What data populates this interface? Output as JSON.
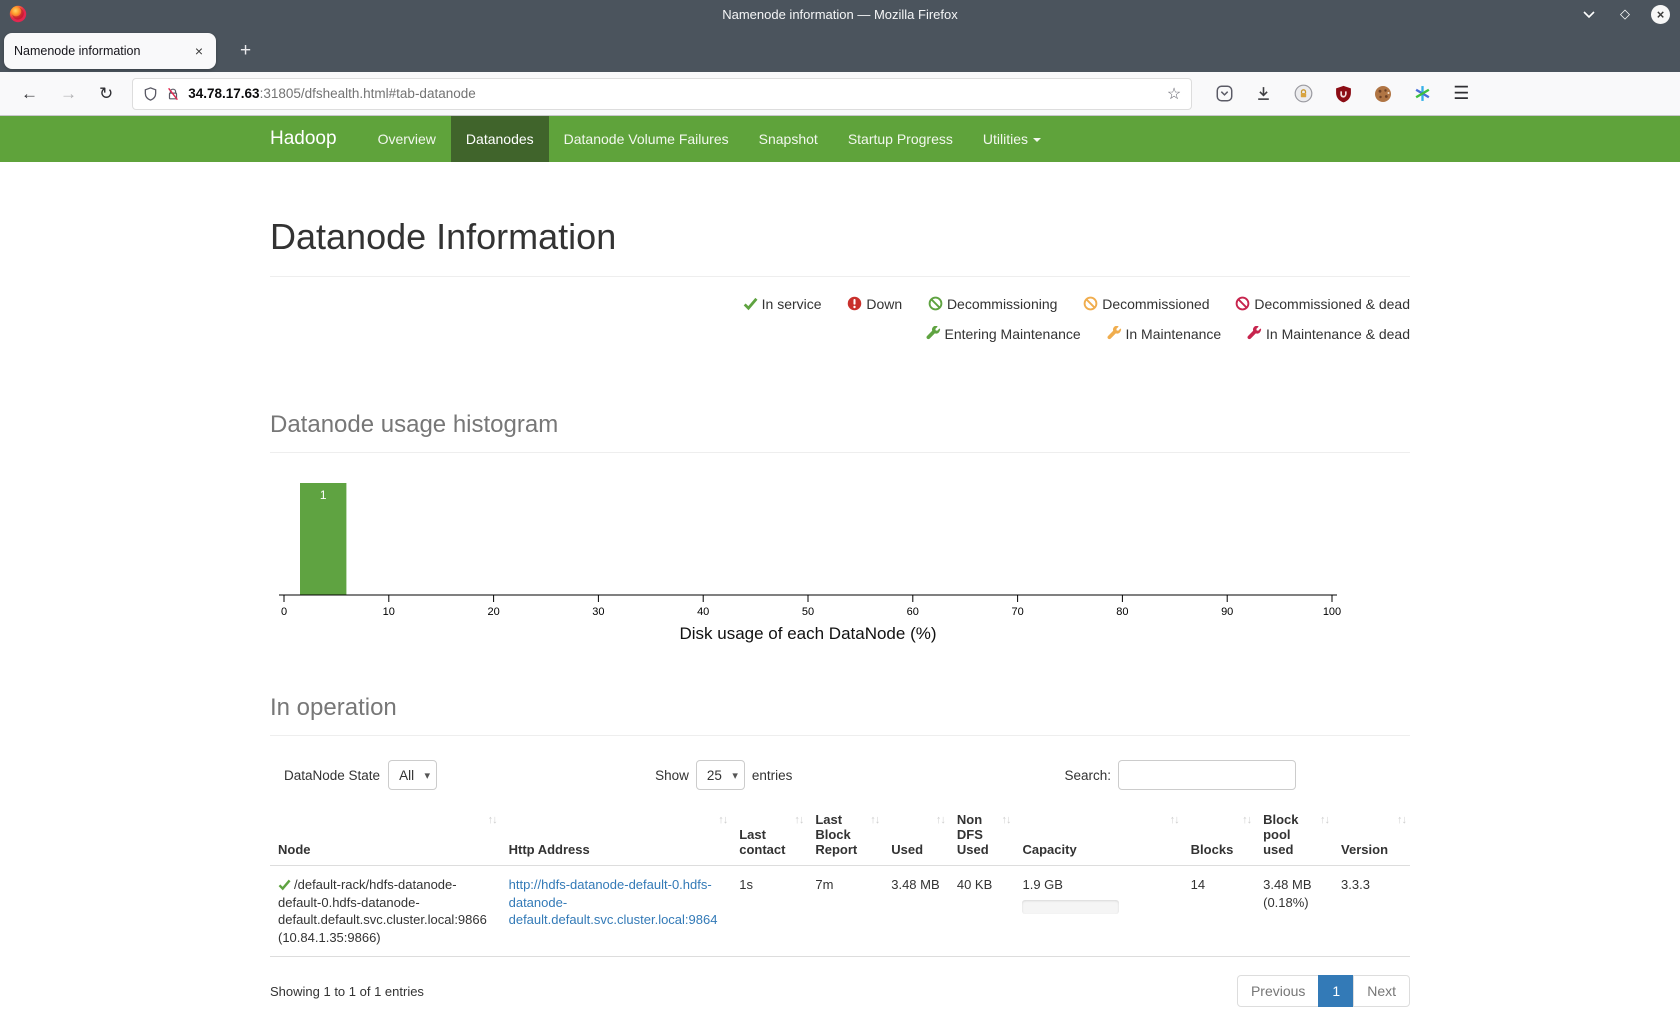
{
  "window": {
    "title": "Namenode information — Mozilla Firefox"
  },
  "browser": {
    "tab_title": "Namenode information",
    "url_host": "34.78.17.63",
    "url_path": ":31805/dfshealth.html#tab-datanode"
  },
  "icons": {
    "close_x": "×",
    "plus": "+",
    "back": "←",
    "forward": "→",
    "reload": "↻",
    "star": "☆",
    "menu": "☰",
    "maximize": "◇",
    "sort": "↑↓"
  },
  "navbar": {
    "brand": "Hadoop",
    "items": [
      {
        "label": "Overview"
      },
      {
        "label": "Datanodes"
      },
      {
        "label": "Datanode Volume Failures"
      },
      {
        "label": "Snapshot"
      },
      {
        "label": "Startup Progress"
      },
      {
        "label": "Utilities"
      }
    ]
  },
  "page_title": "Datanode Information",
  "legend": {
    "row1": [
      {
        "icon": "check",
        "color": "#5fa341",
        "label": "In service"
      },
      {
        "icon": "exclamation-circle",
        "color": "#c9302c",
        "label": "Down"
      },
      {
        "icon": "ban-circle",
        "color": "#5fa341",
        "label": "Decommissioning"
      },
      {
        "icon": "ban-circle",
        "color": "#f0ad4e",
        "label": "Decommissioned"
      },
      {
        "icon": "ban-circle",
        "color": "#c7254e",
        "label": "Decommissioned & dead"
      }
    ],
    "row2": [
      {
        "icon": "wrench",
        "color": "#5fa341",
        "label": "Entering Maintenance"
      },
      {
        "icon": "wrench",
        "color": "#f0ad4e",
        "label": "In Maintenance"
      },
      {
        "icon": "wrench",
        "color": "#c7254e",
        "label": "In Maintenance & dead"
      }
    ]
  },
  "histogram_heading": "Datanode usage histogram",
  "chart_data": {
    "type": "bar",
    "title": "Datanode usage histogram",
    "xlabel": "Disk usage of each DataNode (%)",
    "ylabel": "",
    "xlim": [
      0,
      100
    ],
    "x_ticks": [
      0,
      10,
      20,
      30,
      40,
      50,
      60,
      70,
      80,
      90,
      100
    ],
    "bars": [
      {
        "bin_start": 0,
        "bin_end": 5,
        "count": 1,
        "label": "1"
      }
    ],
    "bar_color": "#5fa341",
    "grid": false
  },
  "operation": {
    "heading": "In operation",
    "state_label": "DataNode State",
    "state_value": "All",
    "show_label": "Show",
    "show_value": "25",
    "entries_label": "entries",
    "search_label": "Search:",
    "search_value": "",
    "table": {
      "headers": [
        "Node",
        "Http Address",
        "Last contact",
        "Last Block Report",
        "Used",
        "Non DFS Used",
        "Capacity",
        "Blocks",
        "Block pool used",
        "Version"
      ],
      "row": {
        "node": "/default-rack/hdfs-datanode-default-0.hdfs-datanode-default.default.svc.cluster.local:9866 (10.84.1.35:9866)",
        "http_address": "http://hdfs-datanode-default-0.hdfs-datanode-default.default.svc.cluster.local:9864",
        "last_contact": "1s",
        "last_block_report": "7m",
        "used": "3.48 MB",
        "non_dfs_used": "40 KB",
        "capacity": "1.9 GB",
        "blocks": "14",
        "block_pool_used": "3.48 MB (0.18%)",
        "version": "3.3.3"
      }
    },
    "footer": "Showing 1 to 1 of 1 entries",
    "pagination": {
      "previous": "Previous",
      "page": "1",
      "next": "Next"
    }
  }
}
